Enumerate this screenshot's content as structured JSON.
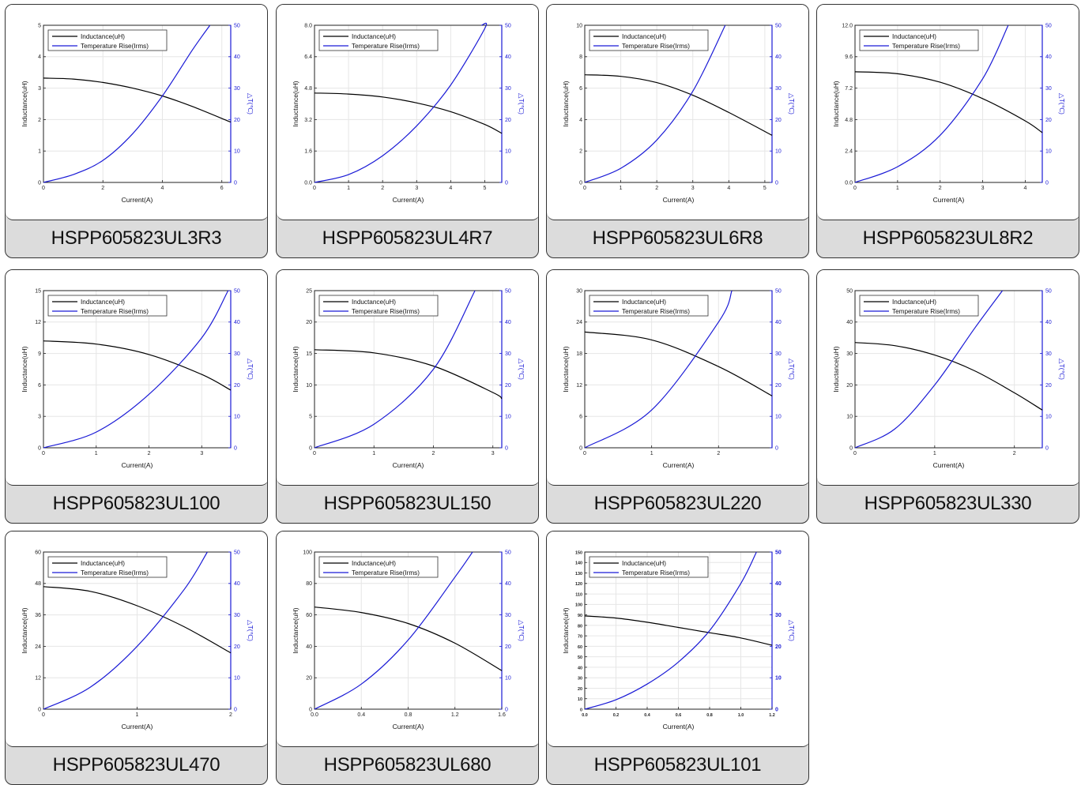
{
  "colors": {
    "inductance": "#000000",
    "temperature": "#1a1ad6",
    "right_axis": "#1a1ad6",
    "card_footer": "#dcdcdc",
    "grid": "#e6e6e6"
  },
  "chart_data": [
    {
      "type": "line",
      "label": "HSPP605823UL3R3",
      "xlabel": "Current(A)",
      "ylabel": "Inductance(uH)",
      "y2label": "△T(℃)",
      "xlim": [
        0,
        6.3
      ],
      "xticks": [
        0,
        2,
        4,
        6
      ],
      "xtick_labels": [
        "0",
        "2",
        "4",
        "6"
      ],
      "ylim": [
        0,
        5
      ],
      "yticks": [
        0,
        1,
        2,
        3,
        4,
        5
      ],
      "ytick_labels": [
        "0",
        "1",
        "2",
        "3",
        "4",
        "5"
      ],
      "y2lim": [
        0,
        50
      ],
      "y2ticks": [
        0,
        10,
        20,
        30,
        40,
        50
      ],
      "y2tick_labels": [
        "0",
        "10",
        "20",
        "30",
        "40",
        "50"
      ],
      "legend": "top-left",
      "series": [
        {
          "name": "Inductance(uH)",
          "axis": "left",
          "x": [
            0,
            1,
            2,
            3,
            4,
            5,
            6.3
          ],
          "y": [
            3.32,
            3.29,
            3.18,
            3.0,
            2.75,
            2.42,
            1.92
          ]
        },
        {
          "name": "Temperature Rise(Irms)",
          "axis": "right",
          "x": [
            0,
            1,
            2,
            3,
            4,
            5,
            5.6
          ],
          "y": [
            0,
            2.5,
            7,
            15.5,
            27.5,
            42,
            50
          ]
        }
      ]
    },
    {
      "type": "line",
      "label": "HSPP605823UL4R7",
      "xlabel": "Current(A)",
      "ylabel": "Inductance(uH)",
      "y2label": "△T(℃)",
      "xlim": [
        0,
        5.5
      ],
      "xticks": [
        0,
        1,
        2,
        3,
        4,
        5
      ],
      "xtick_labels": [
        "0",
        "1",
        "2",
        "3",
        "4",
        "5"
      ],
      "ylim": [
        0,
        8
      ],
      "yticks": [
        0,
        1.6,
        3.2,
        4.8,
        6.4,
        8
      ],
      "ytick_labels": [
        "0.0",
        "1.6",
        "3.2",
        "4.8",
        "6.4",
        "8.0"
      ],
      "y2lim": [
        0,
        50
      ],
      "y2ticks": [
        0,
        10,
        20,
        30,
        40,
        50
      ],
      "y2tick_labels": [
        "0",
        "10",
        "20",
        "30",
        "40",
        "50"
      ],
      "legend": "top-left",
      "series": [
        {
          "name": "Inductance(uH)",
          "axis": "left",
          "x": [
            0,
            1,
            2,
            3,
            4,
            5,
            5.5
          ],
          "y": [
            4.55,
            4.5,
            4.35,
            4.05,
            3.6,
            2.95,
            2.5
          ]
        },
        {
          "name": "Temperature Rise(Irms)",
          "axis": "right",
          "x": [
            0,
            1,
            2,
            3,
            4,
            5,
            4.9
          ],
          "y": [
            0,
            2.5,
            8.5,
            18,
            31,
            49,
            50
          ]
        }
      ]
    },
    {
      "type": "line",
      "label": "HSPP605823UL6R8",
      "xlabel": "Current(A)",
      "ylabel": "Inductance(uH)",
      "y2label": "△T(℃)",
      "xlim": [
        0,
        5.2
      ],
      "xticks": [
        0,
        1,
        2,
        3,
        4,
        5
      ],
      "xtick_labels": [
        "0",
        "1",
        "2",
        "3",
        "4",
        "5"
      ],
      "ylim": [
        0,
        10
      ],
      "yticks": [
        0,
        2,
        4,
        6,
        8,
        10
      ],
      "ytick_labels": [
        "0",
        "2",
        "4",
        "6",
        "8",
        "10"
      ],
      "y2lim": [
        0,
        50
      ],
      "y2ticks": [
        0,
        10,
        20,
        30,
        40,
        50
      ],
      "y2tick_labels": [
        "0",
        "10",
        "20",
        "30",
        "40",
        "50"
      ],
      "legend": "top-left",
      "series": [
        {
          "name": "Inductance(uH)",
          "axis": "left",
          "x": [
            0,
            1,
            2,
            3,
            4,
            5.2
          ],
          "y": [
            6.85,
            6.75,
            6.35,
            5.55,
            4.45,
            3.0
          ]
        },
        {
          "name": "Temperature Rise(Irms)",
          "axis": "right",
          "x": [
            0,
            1,
            2,
            3,
            3.9
          ],
          "y": [
            0,
            4.5,
            13.5,
            29,
            50
          ]
        }
      ]
    },
    {
      "type": "line",
      "label": "HSPP605823UL8R2",
      "xlabel": "Current(A)",
      "ylabel": "Inductance(uH)",
      "y2label": "△T(℃)",
      "xlim": [
        0,
        4.4
      ],
      "xticks": [
        0,
        1,
        2,
        3,
        4
      ],
      "xtick_labels": [
        "0",
        "1",
        "2",
        "3",
        "4"
      ],
      "ylim": [
        0,
        12
      ],
      "yticks": [
        0,
        2.4,
        4.8,
        7.2,
        9.6,
        12
      ],
      "ytick_labels": [
        "0.0",
        "2.4",
        "4.8",
        "7.2",
        "9.6",
        "12.0"
      ],
      "y2lim": [
        0,
        50
      ],
      "y2ticks": [
        0,
        10,
        20,
        30,
        40,
        50
      ],
      "y2tick_labels": [
        "0",
        "10",
        "20",
        "30",
        "40",
        "50"
      ],
      "legend": "top-left",
      "series": [
        {
          "name": "Inductance(uH)",
          "axis": "left",
          "x": [
            0,
            1,
            2,
            3,
            4,
            4.4
          ],
          "y": [
            8.45,
            8.3,
            7.65,
            6.4,
            4.7,
            3.8
          ]
        },
        {
          "name": "Temperature Rise(Irms)",
          "axis": "right",
          "x": [
            0,
            1,
            2,
            3,
            3.6
          ],
          "y": [
            0,
            5,
            15,
            33,
            50
          ]
        }
      ]
    },
    {
      "type": "line",
      "label": "HSPP605823UL100",
      "xlabel": "Current(A)",
      "ylabel": "Inductance(uH)",
      "y2label": "△T(℃)",
      "xlim": [
        0,
        3.55
      ],
      "xticks": [
        0,
        1,
        2,
        3
      ],
      "xtick_labels": [
        "0",
        "1",
        "2",
        "3"
      ],
      "ylim": [
        0,
        15
      ],
      "yticks": [
        0,
        3,
        6,
        9,
        12,
        15
      ],
      "ytick_labels": [
        "0",
        "3",
        "6",
        "9",
        "12",
        "15"
      ],
      "y2lim": [
        0,
        50
      ],
      "y2ticks": [
        0,
        10,
        20,
        30,
        40,
        50
      ],
      "y2tick_labels": [
        "0",
        "10",
        "20",
        "30",
        "40",
        "50"
      ],
      "legend": "top-left",
      "series": [
        {
          "name": "Inductance(uH)",
          "axis": "left",
          "x": [
            0,
            1,
            2,
            3,
            3.55
          ],
          "y": [
            10.2,
            9.9,
            8.9,
            7.0,
            5.5
          ]
        },
        {
          "name": "Temperature Rise(Irms)",
          "axis": "right",
          "x": [
            0,
            1,
            2,
            3,
            3.5
          ],
          "y": [
            0,
            5,
            17,
            35,
            50
          ]
        }
      ]
    },
    {
      "type": "line",
      "label": "HSPP605823UL150",
      "xlabel": "Current(A)",
      "ylabel": "Inductance(uH)",
      "y2label": "△T(℃)",
      "xlim": [
        0,
        3.15
      ],
      "xticks": [
        0,
        1,
        2,
        3
      ],
      "xtick_labels": [
        "0",
        "1",
        "2",
        "3"
      ],
      "ylim": [
        0,
        25
      ],
      "yticks": [
        0,
        5,
        10,
        15,
        20,
        25
      ],
      "ytick_labels": [
        "0",
        "5",
        "10",
        "15",
        "20",
        "25"
      ],
      "y2lim": [
        0,
        50
      ],
      "y2ticks": [
        0,
        10,
        20,
        30,
        40,
        50
      ],
      "y2tick_labels": [
        "0",
        "10",
        "20",
        "30",
        "40",
        "50"
      ],
      "legend": "top-left",
      "series": [
        {
          "name": "Inductance(uH)",
          "axis": "left",
          "x": [
            0,
            1,
            2,
            3,
            3.15
          ],
          "y": [
            15.6,
            15.1,
            13.0,
            8.8,
            7.8
          ]
        },
        {
          "name": "Temperature Rise(Irms)",
          "axis": "right",
          "x": [
            0,
            1,
            2,
            2.7
          ],
          "y": [
            0,
            7.5,
            25,
            50
          ]
        }
      ]
    },
    {
      "type": "line",
      "label": "HSPP605823UL220",
      "xlabel": "Current(A)",
      "ylabel": "Inductance(uH)",
      "y2label": "△T(℃)",
      "xlim": [
        0,
        2.8
      ],
      "xticks": [
        0,
        1,
        2
      ],
      "xtick_labels": [
        "0",
        "1",
        "2"
      ],
      "ylim": [
        0,
        30
      ],
      "yticks": [
        0,
        6,
        12,
        18,
        24,
        30
      ],
      "ytick_labels": [
        "0",
        "6",
        "12",
        "18",
        "24",
        "30"
      ],
      "y2lim": [
        0,
        50
      ],
      "y2ticks": [
        0,
        10,
        20,
        30,
        40,
        50
      ],
      "y2tick_labels": [
        "0",
        "10",
        "20",
        "30",
        "40",
        "50"
      ],
      "legend": "top-left",
      "series": [
        {
          "name": "Inductance(uH)",
          "axis": "left",
          "x": [
            0,
            1,
            2,
            2.8
          ],
          "y": [
            22.1,
            20.6,
            15.5,
            9.9
          ]
        },
        {
          "name": "Temperature Rise(Irms)",
          "axis": "right",
          "x": [
            0,
            1,
            2,
            2.2
          ],
          "y": [
            0,
            12,
            40,
            50
          ]
        }
      ]
    },
    {
      "type": "line",
      "label": "HSPP605823UL330",
      "xlabel": "Current(A)",
      "ylabel": "Inductance(uH)",
      "y2label": "△T(℃)",
      "xlim": [
        0,
        2.35
      ],
      "xticks": [
        0,
        1,
        2
      ],
      "xtick_labels": [
        "0",
        "1",
        "2"
      ],
      "ylim": [
        0,
        50
      ],
      "yticks": [
        0,
        10,
        20,
        30,
        40,
        50
      ],
      "ytick_labels": [
        "0",
        "10",
        "20",
        "30",
        "40",
        "50"
      ],
      "y2lim": [
        0,
        50
      ],
      "y2ticks": [
        0,
        10,
        20,
        30,
        40,
        50
      ],
      "y2tick_labels": [
        "0",
        "10",
        "20",
        "30",
        "40",
        "50"
      ],
      "legend": "top-left",
      "series": [
        {
          "name": "Inductance(uH)",
          "axis": "left",
          "x": [
            0,
            0.5,
            1,
            1.5,
            2,
            2.35
          ],
          "y": [
            33.5,
            32.5,
            29.5,
            24.5,
            17.5,
            12.0
          ]
        },
        {
          "name": "Temperature Rise(Irms)",
          "axis": "right",
          "x": [
            0,
            0.5,
            1,
            1.5,
            1.85
          ],
          "y": [
            0,
            6,
            20,
            38,
            50
          ]
        }
      ]
    },
    {
      "type": "line",
      "label": "HSPP605823UL470",
      "xlabel": "Current(A)",
      "ylabel": "Inductance(uH)",
      "y2label": "△T(℃)",
      "xlim": [
        0,
        2
      ],
      "xticks": [
        0,
        1,
        2
      ],
      "xtick_labels": [
        "0",
        "1",
        "2"
      ],
      "ylim": [
        0,
        60
      ],
      "yticks": [
        0,
        12,
        24,
        36,
        48,
        60
      ],
      "ytick_labels": [
        "0",
        "12",
        "24",
        "36",
        "48",
        "60"
      ],
      "y2lim": [
        0,
        50
      ],
      "y2ticks": [
        0,
        10,
        20,
        30,
        40,
        50
      ],
      "y2tick_labels": [
        "0",
        "10",
        "20",
        "30",
        "40",
        "50"
      ],
      "legend": "top-left",
      "series": [
        {
          "name": "Inductance(uH)",
          "axis": "left",
          "x": [
            0,
            0.5,
            1,
            1.5,
            2
          ],
          "y": [
            46.8,
            45.0,
            39.5,
            31.5,
            21.5
          ]
        },
        {
          "name": "Temperature Rise(Irms)",
          "axis": "right",
          "x": [
            0,
            0.5,
            1,
            1.5,
            1.75
          ],
          "y": [
            0,
            7,
            20,
            38,
            50
          ]
        }
      ]
    },
    {
      "type": "line",
      "label": "HSPP605823UL680",
      "xlabel": "Current(A)",
      "ylabel": "Inductance(uH)",
      "y2label": "△T(℃)",
      "xlim": [
        0,
        1.6
      ],
      "xticks": [
        0,
        0.4,
        0.8,
        1.2,
        1.6
      ],
      "xtick_labels": [
        "0.0",
        "0.4",
        "0.8",
        "1.2",
        "1.6"
      ],
      "ylim": [
        0,
        100
      ],
      "yticks": [
        0,
        20,
        40,
        60,
        80,
        100
      ],
      "ytick_labels": [
        "0",
        "20",
        "40",
        "60",
        "80",
        "100"
      ],
      "y2lim": [
        0,
        50
      ],
      "y2ticks": [
        0,
        10,
        20,
        30,
        40,
        50
      ],
      "y2tick_labels": [
        "0",
        "10",
        "20",
        "30",
        "40",
        "50"
      ],
      "legend": "top-left",
      "series": [
        {
          "name": "Inductance(uH)",
          "axis": "left",
          "x": [
            0,
            0.4,
            0.8,
            1.2,
            1.6
          ],
          "y": [
            65,
            61.5,
            54.5,
            42.0,
            24.5
          ]
        },
        {
          "name": "Temperature Rise(Irms)",
          "axis": "right",
          "x": [
            0,
            0.4,
            0.8,
            1.2,
            1.35
          ],
          "y": [
            0,
            8,
            22,
            42,
            50
          ]
        }
      ]
    },
    {
      "type": "line",
      "label": "HSPP605823UL101",
      "xlabel": "Current(A)",
      "ylabel": "Inductance(uH)",
      "y2label": "△T(℃)",
      "xlim": [
        0,
        1.2
      ],
      "xticks": [
        0,
        0.2,
        0.4,
        0.6,
        0.8,
        1.0,
        1.2
      ],
      "xtick_labels": [
        "0.0",
        "0.2",
        "0.4",
        "0.6",
        "0.8",
        "1.0",
        "1.2"
      ],
      "ylim": [
        0,
        150
      ],
      "yticks": [
        0,
        10,
        20,
        30,
        40,
        50,
        60,
        70,
        80,
        90,
        100,
        110,
        120,
        130,
        140,
        150
      ],
      "ytick_labels": [
        "0",
        "10",
        "20",
        "30",
        "40",
        "50",
        "60",
        "70",
        "80",
        "90",
        "100",
        "110",
        "120",
        "130",
        "140",
        "150"
      ],
      "y2lim": [
        0,
        50
      ],
      "y2ticks": [
        0,
        10,
        20,
        30,
        40,
        50
      ],
      "y2tick_labels": [
        "0",
        "10",
        "20",
        "30",
        "40",
        "50"
      ],
      "legend": "top-left",
      "series": [
        {
          "name": "Inductance(uH)",
          "axis": "left",
          "x": [
            0,
            0.2,
            0.4,
            0.6,
            0.8,
            1.0,
            1.2
          ],
          "y": [
            89,
            87,
            83,
            78,
            73,
            68,
            61
          ]
        },
        {
          "name": "Temperature Rise(Irms)",
          "axis": "right",
          "x": [
            0,
            0.2,
            0.4,
            0.6,
            0.8,
            1.0,
            1.1
          ],
          "y": [
            0,
            3,
            8,
            15,
            25,
            40,
            50
          ]
        }
      ]
    }
  ]
}
